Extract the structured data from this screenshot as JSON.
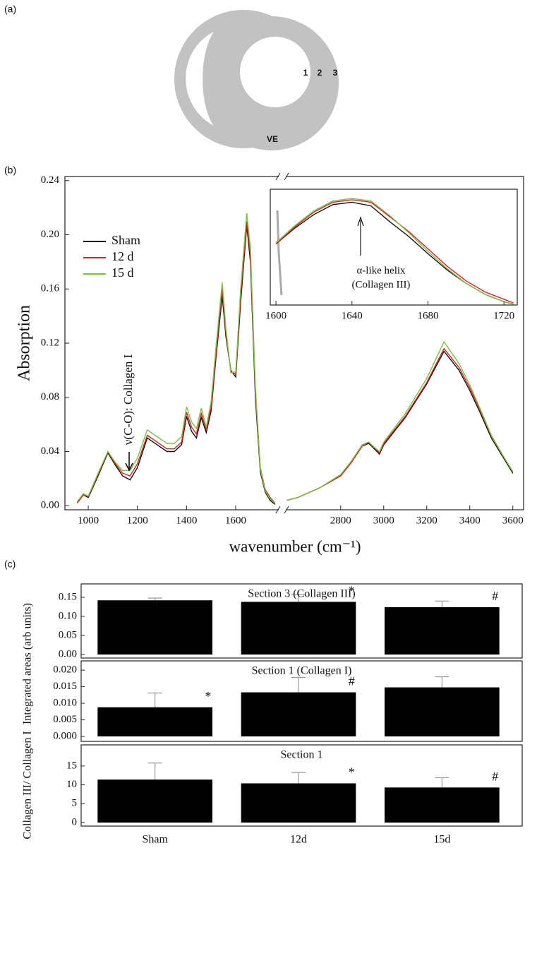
{
  "panel_labels": [
    "(a)",
    "(b)",
    "(c)"
  ],
  "diagram": {
    "labels": [
      "1",
      "2",
      "3",
      "VE"
    ]
  },
  "chart_data": [
    {
      "type": "line",
      "y_label": "Absorption",
      "x_label": "wavenumber (cm⁻¹)",
      "annotations": [
        "ν(C-O): Collagen I"
      ],
      "xlim": [
        905,
        3650
      ],
      "x_break": [
        1775,
        2545
      ],
      "ylim": [
        -0.003,
        0.243
      ],
      "xticks": [
        1000,
        1200,
        1400,
        1600,
        2800,
        3000,
        3200,
        3400,
        3600
      ],
      "yticks": [
        {
          "value": 0,
          "label": "0.00"
        },
        0.04,
        0.08,
        0.12,
        0.16,
        {
          "value": 0.2,
          "label": "0.20"
        },
        0.24
      ],
      "legend": "upper left",
      "x": [
        955,
        980,
        1000,
        1040,
        1080,
        1110,
        1140,
        1170,
        1200,
        1240,
        1280,
        1320,
        1350,
        1380,
        1400,
        1420,
        1440,
        1460,
        1480,
        1500,
        1520,
        1545,
        1560,
        1580,
        1600,
        1620,
        1645,
        1660,
        1680,
        1700,
        1720,
        1740,
        1760,
        2550,
        2600,
        2700,
        2800,
        2850,
        2900,
        2930,
        2950,
        2980,
        3000,
        3100,
        3200,
        3280,
        3350,
        3400,
        3450,
        3500,
        3550,
        3600
      ],
      "series": [
        {
          "name": "Sham",
          "color": "#111111",
          "values": [
            0.002,
            0.008,
            0.006,
            0.022,
            0.039,
            0.03,
            0.022,
            0.019,
            0.028,
            0.05,
            0.045,
            0.04,
            0.04,
            0.045,
            0.066,
            0.055,
            0.05,
            0.065,
            0.054,
            0.07,
            0.11,
            0.155,
            0.125,
            0.1,
            0.095,
            0.15,
            0.207,
            0.18,
            0.08,
            0.025,
            0.01,
            0.004,
            0.001,
            0.004,
            0.006,
            0.013,
            0.022,
            0.032,
            0.044,
            0.046,
            0.043,
            0.038,
            0.045,
            0.065,
            0.09,
            0.114,
            0.1,
            0.085,
            0.068,
            0.05,
            0.037,
            0.024
          ]
        },
        {
          "name": "12 d",
          "color": "#e02020",
          "values": [
            0.002,
            0.008,
            0.007,
            0.023,
            0.04,
            0.031,
            0.024,
            0.022,
            0.031,
            0.052,
            0.047,
            0.042,
            0.042,
            0.047,
            0.069,
            0.058,
            0.053,
            0.068,
            0.056,
            0.073,
            0.113,
            0.16,
            0.128,
            0.099,
            0.097,
            0.155,
            0.21,
            0.185,
            0.085,
            0.028,
            0.012,
            0.006,
            0.002,
            0.004,
            0.006,
            0.013,
            0.022,
            0.032,
            0.044,
            0.047,
            0.044,
            0.039,
            0.046,
            0.066,
            0.091,
            0.116,
            0.102,
            0.087,
            0.07,
            0.052,
            0.038,
            0.025
          ]
        },
        {
          "name": "15 d",
          "color": "#7cc142",
          "values": [
            0.003,
            0.009,
            0.007,
            0.024,
            0.04,
            0.032,
            0.026,
            0.026,
            0.035,
            0.056,
            0.051,
            0.046,
            0.046,
            0.051,
            0.073,
            0.062,
            0.057,
            0.072,
            0.058,
            0.077,
            0.118,
            0.165,
            0.131,
            0.098,
            0.099,
            0.16,
            0.216,
            0.19,
            0.088,
            0.027,
            0.011,
            0.005,
            0.002,
            0.004,
            0.006,
            0.013,
            0.023,
            0.033,
            0.045,
            0.047,
            0.044,
            0.04,
            0.047,
            0.068,
            0.094,
            0.121,
            0.105,
            0.089,
            0.071,
            0.052,
            0.038,
            0.025
          ]
        }
      ]
    },
    {
      "type": "line",
      "annotations": [
        "α-like helix",
        "(Collagen III)"
      ],
      "xlim": [
        1597,
        1727
      ],
      "ylim": [
        0,
        1
      ],
      "xticks": [
        1600,
        1640,
        1680,
        1720
      ],
      "x": [
        1600,
        1610,
        1620,
        1630,
        1640,
        1650,
        1660,
        1670,
        1680,
        1690,
        1700,
        1710,
        1720,
        1725
      ],
      "series": [
        {
          "name": "Sham",
          "color": "#111111",
          "values": [
            0.52,
            0.65,
            0.76,
            0.84,
            0.86,
            0.83,
            0.7,
            0.58,
            0.44,
            0.31,
            0.2,
            0.11,
            0.05,
            0.03
          ]
        },
        {
          "name": "12 d",
          "color": "#e02020",
          "values": [
            0.52,
            0.66,
            0.78,
            0.86,
            0.88,
            0.86,
            0.74,
            0.62,
            0.48,
            0.34,
            0.22,
            0.13,
            0.07,
            0.04
          ]
        },
        {
          "name": "15 d",
          "color": "#7cc142",
          "values": [
            0.53,
            0.67,
            0.79,
            0.87,
            0.89,
            0.87,
            0.75,
            0.61,
            0.46,
            0.32,
            0.2,
            0.11,
            0.05,
            0.03
          ]
        }
      ]
    },
    {
      "type": "bar",
      "title": "Section 3 (Collagen III)",
      "y_label": "Integrated areas (arb units)",
      "categories": [
        null,
        null,
        null
      ],
      "values": [
        0.142,
        0.138,
        0.124
      ],
      "errors": [
        0.006,
        0.02,
        0.016
      ],
      "value_annotations": [
        null,
        "*",
        "#"
      ],
      "color": "#000000",
      "ylim": [
        0,
        0.185
      ],
      "yticks": [
        {
          "value": 0,
          "label": "0.00"
        },
        0.05,
        {
          "value": 0.1,
          "label": "0.10"
        },
        0.15
      ]
    },
    {
      "type": "bar",
      "title": "Section 1 (Collagen I)",
      "categories": [
        null,
        null,
        null
      ],
      "values": [
        0.0088,
        0.0133,
        0.0148
      ],
      "errors": [
        0.0043,
        0.0045,
        0.0032
      ],
      "value_annotations": [
        "*",
        "#",
        null
      ],
      "color": "#000000",
      "ylim": [
        0,
        0.0228
      ],
      "yticks": [
        {
          "value": 0,
          "label": "0.000"
        },
        0.005,
        {
          "value": 0.01,
          "label": "0.010"
        },
        0.015,
        {
          "value": 0.02,
          "label": "0.020"
        }
      ]
    },
    {
      "type": "bar",
      "title": "Section 1",
      "y_label": "Collagen III/ Collagen I",
      "categories": [
        "Sham",
        "12d",
        "15d"
      ],
      "values": [
        11.4,
        10.4,
        9.3
      ],
      "errors": [
        4.4,
        2.9,
        2.6
      ],
      "value_annotations": [
        null,
        "*",
        "#"
      ],
      "color": "#000000",
      "ylim": [
        0,
        20.6
      ],
      "yticks": [
        0,
        5,
        10,
        15
      ]
    }
  ]
}
